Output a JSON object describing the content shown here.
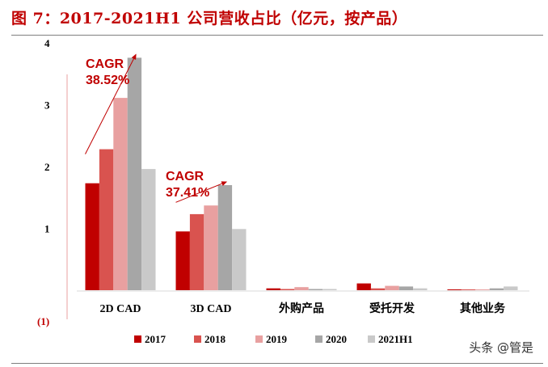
{
  "title": "图 7：2017-2021H1 公司营收占比（亿元，按产品）",
  "watermark": "头条 @管是",
  "chart_data": {
    "type": "bar",
    "categories": [
      "2D CAD",
      "3D CAD",
      "外购产品",
      "受托开发",
      "其他业务"
    ],
    "series": [
      {
        "name": "2017",
        "color": "#c00000",
        "values": [
          1.73,
          0.95,
          0.03,
          0.11,
          0.01
        ]
      },
      {
        "name": "2018",
        "color": "#d9534f",
        "values": [
          2.28,
          1.23,
          0.02,
          0.03,
          0.01
        ]
      },
      {
        "name": "2019",
        "color": "#e8a0a0",
        "values": [
          3.11,
          1.37,
          0.05,
          0.07,
          0.01
        ]
      },
      {
        "name": "2020",
        "color": "#a6a6a6",
        "values": [
          3.76,
          1.7,
          0.02,
          0.06,
          0.03
        ]
      },
      {
        "name": "2021H1",
        "color": "#c9c9c9",
        "values": [
          1.96,
          0.99,
          0.02,
          0.03,
          0.06
        ]
      }
    ],
    "yticks": [
      "4",
      "3",
      "2",
      "1",
      "(1)"
    ],
    "ylim": [
      -1,
      4
    ],
    "legend_position": "bottom",
    "annotations": [
      {
        "category": "2D CAD",
        "line1": "CAGR",
        "line2": "38.52%"
      },
      {
        "category": "3D CAD",
        "line1": "CAGR",
        "line2": "37.41%"
      }
    ]
  }
}
